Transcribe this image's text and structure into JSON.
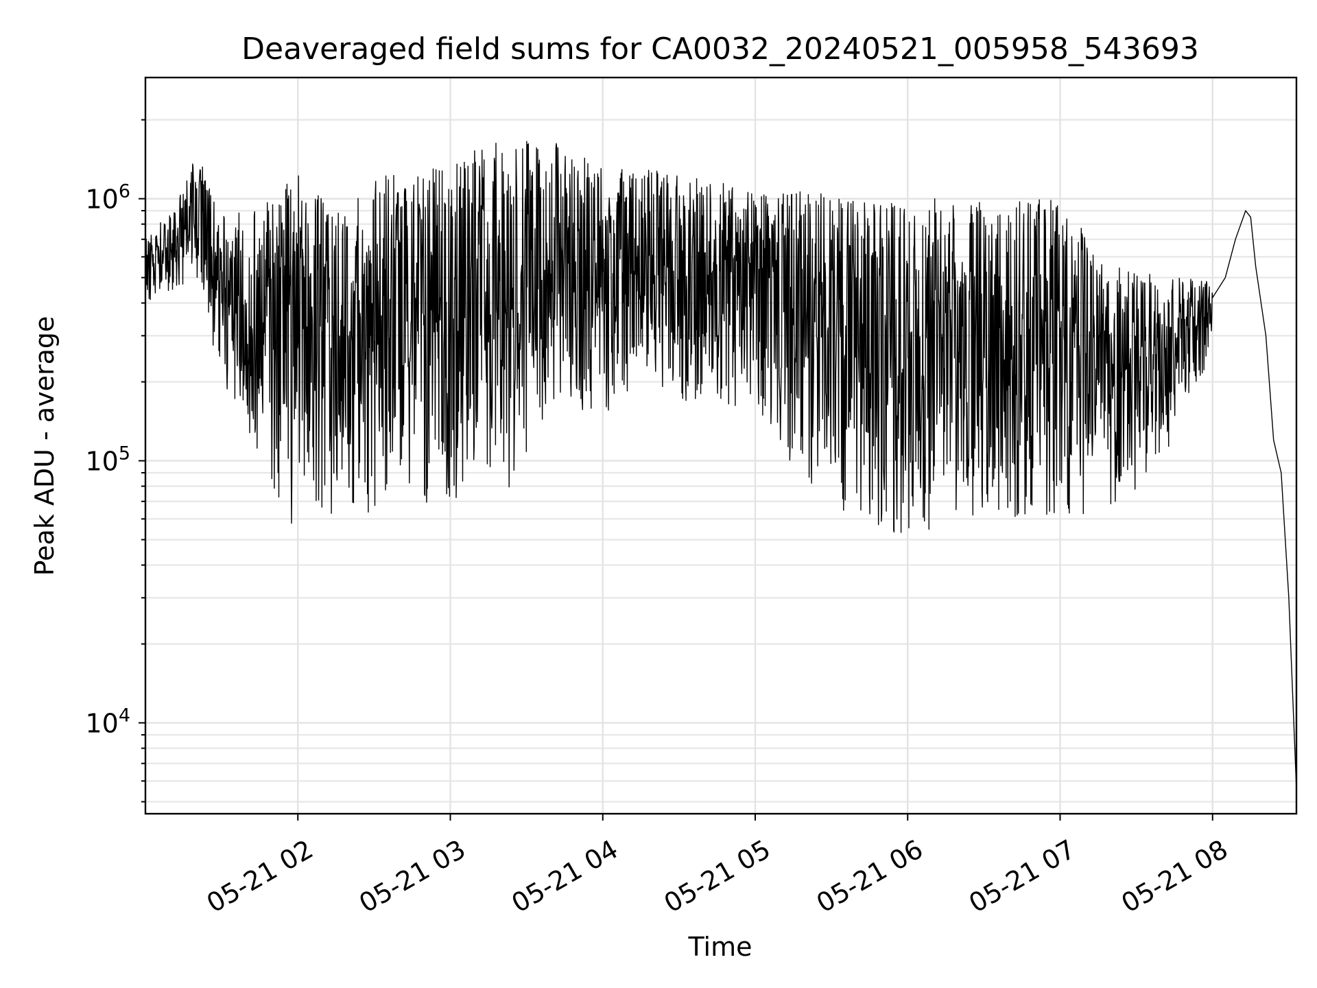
{
  "chart_data": {
    "type": "line",
    "title": "Deaveraged field sums for CA0032_20240521_005958_543693",
    "xlabel": "Time",
    "ylabel": "Peak ADU - average",
    "x_scale": "time",
    "y_scale": "log",
    "xlim": [
      "2024-05-21 01:00",
      "2024-05-21 08:33"
    ],
    "ylim": [
      4500,
      2900000
    ],
    "grid": "both",
    "x_ticks": [
      {
        "value": "2024-05-21 02:00",
        "label": "05-21 02"
      },
      {
        "value": "2024-05-21 03:00",
        "label": "05-21 03"
      },
      {
        "value": "2024-05-21 04:00",
        "label": "05-21 04"
      },
      {
        "value": "2024-05-21 05:00",
        "label": "05-21 05"
      },
      {
        "value": "2024-05-21 06:00",
        "label": "05-21 06"
      },
      {
        "value": "2024-05-21 07:00",
        "label": "05-21 07"
      },
      {
        "value": "2024-05-21 08:00",
        "label": "05-21 08"
      }
    ],
    "y_ticks": [
      {
        "value": 10000,
        "base": "10",
        "exp": "4"
      },
      {
        "value": 100000,
        "base": "10",
        "exp": "5"
      },
      {
        "value": 1000000,
        "base": "10",
        "exp": "6"
      }
    ],
    "series": [
      {
        "color": "#000000",
        "envelope": [
          {
            "t": "01:00",
            "low": 400000,
            "high": 700000
          },
          {
            "t": "01:10",
            "low": 430000,
            "high": 900000
          },
          {
            "t": "01:20",
            "low": 500000,
            "high": 1500000
          },
          {
            "t": "01:30",
            "low": 200000,
            "high": 900000
          },
          {
            "t": "01:45",
            "low": 100000,
            "high": 900000
          },
          {
            "t": "02:00",
            "low": 50000,
            "high": 1300000
          },
          {
            "t": "02:15",
            "low": 60000,
            "high": 900000
          },
          {
            "t": "02:30",
            "low": 60000,
            "high": 1200000
          },
          {
            "t": "02:45",
            "low": 70000,
            "high": 1300000
          },
          {
            "t": "03:00",
            "low": 60000,
            "high": 1400000
          },
          {
            "t": "03:20",
            "low": 70000,
            "high": 1700000
          },
          {
            "t": "03:40",
            "low": 150000,
            "high": 1700000
          },
          {
            "t": "04:00",
            "low": 150000,
            "high": 1300000
          },
          {
            "t": "04:20",
            "low": 200000,
            "high": 1300000
          },
          {
            "t": "04:40",
            "low": 150000,
            "high": 1200000
          },
          {
            "t": "05:00",
            "low": 150000,
            "high": 1100000
          },
          {
            "t": "05:20",
            "low": 80000,
            "high": 1100000
          },
          {
            "t": "05:40",
            "low": 60000,
            "high": 1000000
          },
          {
            "t": "06:00",
            "low": 50000,
            "high": 1000000
          },
          {
            "t": "06:20",
            "low": 60000,
            "high": 1000000
          },
          {
            "t": "06:40",
            "low": 60000,
            "high": 1000000
          },
          {
            "t": "07:00",
            "low": 60000,
            "high": 1000000
          },
          {
            "t": "07:20",
            "low": 60000,
            "high": 600000
          },
          {
            "t": "07:40",
            "low": 100000,
            "high": 500000
          },
          {
            "t": "08:00",
            "low": 250000,
            "high": 500000
          }
        ],
        "tail": [
          {
            "t": "08:05",
            "value": 500000
          },
          {
            "t": "08:09",
            "value": 700000
          },
          {
            "t": "08:13",
            "value": 900000
          },
          {
            "t": "08:15",
            "value": 850000
          },
          {
            "t": "08:17",
            "value": 550000
          },
          {
            "t": "08:21",
            "value": 300000
          },
          {
            "t": "08:24",
            "value": 120000
          },
          {
            "t": "08:27",
            "value": 90000
          },
          {
            "t": "08:30",
            "value": 30000
          },
          {
            "t": "08:33",
            "value": 5600
          }
        ]
      }
    ]
  }
}
